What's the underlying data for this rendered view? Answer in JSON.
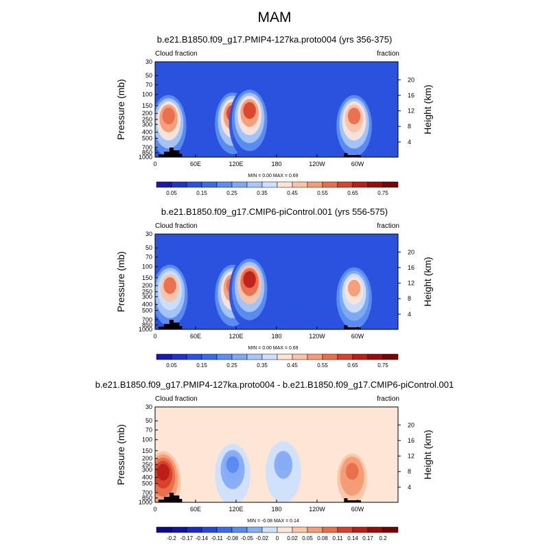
{
  "figure_title": "MAM",
  "chart_data": [
    {
      "type": "heatmap",
      "title": "b.e21.B1850.f09_g17.PMIP4-127ka.proto004 (yrs 356-375)",
      "left_label": "Cloud fraction",
      "right_label": "fraction",
      "xlabel": "",
      "ylabel": "Pressure (mb)",
      "right_axis_label": "Height (km)",
      "x_tick_labels": [
        "0",
        "60E",
        "120E",
        "180",
        "120W",
        "60W"
      ],
      "y_tick_labels": [
        "1000",
        "850",
        "700",
        "500",
        "400",
        "300",
        "250",
        "200",
        "150",
        "100",
        "70",
        "50",
        "30"
      ],
      "right_tick_labels": [
        "4",
        "8",
        "12",
        "16",
        "20"
      ],
      "stats": "MIN =   0.00  MAX =   0.69",
      "colorbar": {
        "labels": [
          "0.05",
          "0.15",
          "0.25",
          "0.35",
          "0.45",
          "0.55",
          "0.65",
          "0.75"
        ],
        "colors": [
          "#1a1aa6",
          "#2233cc",
          "#2a52dd",
          "#3a6ee8",
          "#5c8ef0",
          "#80aaf5",
          "#a8c6fa",
          "#cfdffd",
          "#fbe4d6",
          "#f8c3a8",
          "#f49c78",
          "#ea6e4c",
          "#d8432b",
          "#bd1f18",
          "#9b0d0d",
          "#780505"
        ]
      },
      "field": {
        "base": 0.14,
        "features": [
          {
            "name": "Africa upper cloud",
            "lon": 20,
            "p": 220,
            "value": 0.6
          },
          {
            "name": "Maritime continent upper cloud",
            "lon": 115,
            "p": 200,
            "value": 0.62
          },
          {
            "name": "West Pacific upper cloud",
            "lon": 140,
            "p": 180,
            "value": 0.64
          },
          {
            "name": "South America upper cloud",
            "lon": 295,
            "p": 220,
            "value": 0.58
          }
        ]
      },
      "topography_lon_range": [
        5,
        40
      ]
    },
    {
      "type": "heatmap",
      "title": "b.e21.B1850.f09_g17.CMIP6-piControl.001 (yrs 556-575)",
      "left_label": "Cloud fraction",
      "right_label": "fraction",
      "xlabel": "",
      "ylabel": "Pressure (mb)",
      "right_axis_label": "Height (km)",
      "x_tick_labels": [
        "0",
        "60E",
        "120E",
        "180",
        "120W",
        "60W"
      ],
      "y_tick_labels": [
        "1000",
        "850",
        "700",
        "500",
        "400",
        "300",
        "250",
        "200",
        "150",
        "100",
        "70",
        "50",
        "30"
      ],
      "right_tick_labels": [
        "4",
        "8",
        "12",
        "16",
        "20"
      ],
      "stats": "MIN =   0.00  MAX =   0.69",
      "colorbar": {
        "labels": [
          "0.05",
          "0.15",
          "0.25",
          "0.35",
          "0.45",
          "0.55",
          "0.65",
          "0.75"
        ],
        "colors": [
          "#1a1aa6",
          "#2233cc",
          "#2a52dd",
          "#3a6ee8",
          "#5c8ef0",
          "#80aaf5",
          "#a8c6fa",
          "#cfdffd",
          "#fbe4d6",
          "#f8c3a8",
          "#f49c78",
          "#ea6e4c",
          "#d8432b",
          "#bd1f18",
          "#9b0d0d",
          "#780505"
        ]
      },
      "field": {
        "base": 0.14,
        "features": [
          {
            "name": "Africa upper cloud",
            "lon": 22,
            "p": 200,
            "value": 0.55
          },
          {
            "name": "Maritime continent upper cloud",
            "lon": 115,
            "p": 200,
            "value": 0.6
          },
          {
            "name": "West Pacific upper cloud",
            "lon": 140,
            "p": 160,
            "value": 0.66
          },
          {
            "name": "South America upper cloud",
            "lon": 295,
            "p": 220,
            "value": 0.5
          }
        ]
      },
      "topography_lon_range": [
        5,
        40
      ]
    },
    {
      "type": "heatmap",
      "title": "b.e21.B1850.f09_g17.PMIP4-127ka.proto004 - b.e21.B1850.f09_g17.CMIP6-piControl.001",
      "left_label": "Cloud fraction",
      "right_label": "fraction",
      "xlabel": "",
      "ylabel": "Pressure (mb)",
      "right_axis_label": "Height (km)",
      "x_tick_labels": [
        "0",
        "60E",
        "120E",
        "180",
        "120W",
        "60W"
      ],
      "y_tick_labels": [
        "1000",
        "850",
        "700",
        "500",
        "400",
        "300",
        "250",
        "200",
        "150",
        "100",
        "70",
        "50",
        "30"
      ],
      "right_tick_labels": [
        "4",
        "8",
        "12",
        "16",
        "20"
      ],
      "stats": "MIN =  -0.08  MAX =   0.14",
      "colorbar": {
        "labels": [
          "-0.2",
          "-0.17",
          "-0.14",
          "-0.11",
          "-0.08",
          "-0.05",
          "-0.02",
          "0",
          "0.02",
          "0.05",
          "0.08",
          "0.11",
          "0.14",
          "0.17",
          "0.2"
        ],
        "colors": [
          "#0a0a8a",
          "#13139f",
          "#1c28c0",
          "#2748d6",
          "#3b6be6",
          "#5a8af0",
          "#86acf6",
          "#cfe0fb",
          "#fde6d6",
          "#f9c6a7",
          "#f39c76",
          "#e96d49",
          "#d6402a",
          "#bb1e17",
          "#950b0b",
          "#700404"
        ]
      },
      "field": {
        "base": 0.0,
        "features": [
          {
            "name": "Africa increase",
            "lon": 12,
            "p": 330,
            "value": 0.13
          },
          {
            "name": "South America increase",
            "lon": 292,
            "p": 320,
            "value": 0.09
          },
          {
            "name": "Maritime continent decrease",
            "lon": 115,
            "p": 250,
            "value": -0.06
          },
          {
            "name": "Pacific decrease",
            "lon": 190,
            "p": 230,
            "value": -0.04
          }
        ]
      },
      "topography_lon_range": [
        5,
        40
      ]
    }
  ]
}
